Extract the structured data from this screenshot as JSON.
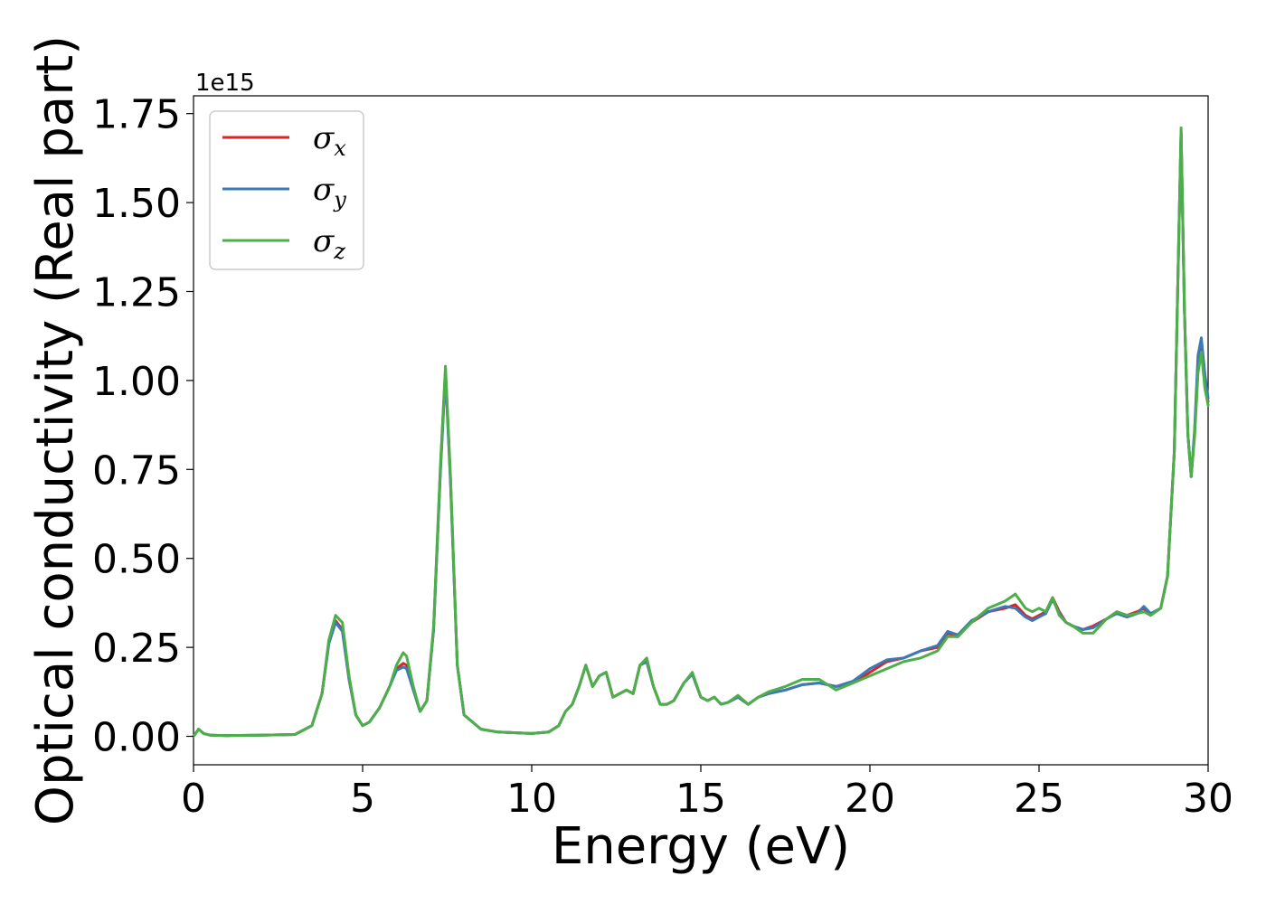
{
  "chart_data": {
    "type": "line",
    "xlabel": "Energy (eV)",
    "ylabel": "Optical conductivity (Real part)",
    "y_offset_label": "1e15",
    "xlim": [
      0,
      30
    ],
    "ylim": [
      -0.08,
      1.8
    ],
    "xticks": [
      {
        "value": 0,
        "label": "0"
      },
      {
        "value": 5,
        "label": "5"
      },
      {
        "value": 10,
        "label": "10"
      },
      {
        "value": 15,
        "label": "15"
      },
      {
        "value": 20,
        "label": "20"
      },
      {
        "value": 25,
        "label": "25"
      },
      {
        "value": 30,
        "label": "30"
      }
    ],
    "yticks": [
      {
        "value": 0.0,
        "label": "0.00"
      },
      {
        "value": 0.25,
        "label": "0.25"
      },
      {
        "value": 0.5,
        "label": "0.50"
      },
      {
        "value": 0.75,
        "label": "0.75"
      },
      {
        "value": 1.0,
        "label": "1.00"
      },
      {
        "value": 1.25,
        "label": "1.25"
      },
      {
        "value": 1.5,
        "label": "1.50"
      },
      {
        "value": 1.75,
        "label": "1.75"
      }
    ],
    "grid": false,
    "legend_position": "top-left",
    "series": [
      {
        "name": "σx",
        "symbol": "σ",
        "subscript": "x",
        "color": "#d62728",
        "x": [
          0,
          0.15,
          0.3,
          0.5,
          1,
          2,
          3,
          3.5,
          3.8,
          4.0,
          4.2,
          4.4,
          4.6,
          4.8,
          5.0,
          5.2,
          5.5,
          5.8,
          6.0,
          6.2,
          6.3,
          6.5,
          6.7,
          6.9,
          7.1,
          7.3,
          7.45,
          7.6,
          7.8,
          8.0,
          8.5,
          9.0,
          10.0,
          10.5,
          10.8,
          11.0,
          11.2,
          11.4,
          11.6,
          11.8,
          12.0,
          12.2,
          12.4,
          12.6,
          12.8,
          13.0,
          13.2,
          13.4,
          13.6,
          13.8,
          14.0,
          14.2,
          14.5,
          14.75,
          15.0,
          15.2,
          15.4,
          15.6,
          15.8,
          16.1,
          16.4,
          16.7,
          17.0,
          17.5,
          18.0,
          18.5,
          19.0,
          19.5,
          20.0,
          20.5,
          21.0,
          21.5,
          22.0,
          22.3,
          22.6,
          23.0,
          23.5,
          24.0,
          24.3,
          24.6,
          24.8,
          25.0,
          25.2,
          25.4,
          25.6,
          25.8,
          26.0,
          26.3,
          26.6,
          27.0,
          27.3,
          27.6,
          27.9,
          28.1,
          28.3,
          28.6,
          28.8,
          29.0,
          29.1,
          29.2,
          29.3,
          29.4,
          29.5,
          29.6,
          29.7,
          29.8,
          29.9,
          30.0
        ],
        "y": [
          0.0,
          0.02,
          0.008,
          0.003,
          0.002,
          0.003,
          0.005,
          0.03,
          0.12,
          0.26,
          0.325,
          0.3,
          0.16,
          0.06,
          0.03,
          0.04,
          0.08,
          0.14,
          0.19,
          0.205,
          0.2,
          0.13,
          0.07,
          0.1,
          0.3,
          0.75,
          1.03,
          0.72,
          0.2,
          0.06,
          0.02,
          0.012,
          0.008,
          0.012,
          0.03,
          0.07,
          0.09,
          0.14,
          0.2,
          0.14,
          0.17,
          0.18,
          0.11,
          0.12,
          0.13,
          0.12,
          0.2,
          0.21,
          0.14,
          0.09,
          0.09,
          0.1,
          0.15,
          0.175,
          0.11,
          0.1,
          0.11,
          0.09,
          0.095,
          0.11,
          0.09,
          0.11,
          0.12,
          0.13,
          0.145,
          0.15,
          0.14,
          0.15,
          0.18,
          0.21,
          0.22,
          0.24,
          0.25,
          0.29,
          0.28,
          0.32,
          0.35,
          0.36,
          0.37,
          0.34,
          0.33,
          0.34,
          0.35,
          0.39,
          0.35,
          0.32,
          0.31,
          0.3,
          0.31,
          0.33,
          0.35,
          0.34,
          0.35,
          0.36,
          0.34,
          0.36,
          0.45,
          0.8,
          1.25,
          1.7,
          1.2,
          0.85,
          0.73,
          0.85,
          1.05,
          1.1,
          1.0,
          0.94
        ]
      },
      {
        "name": "σy",
        "symbol": "σ",
        "subscript": "y",
        "color": "#3a7ab6",
        "x": [
          0,
          0.15,
          0.3,
          0.5,
          1,
          2,
          3,
          3.5,
          3.8,
          4.0,
          4.2,
          4.4,
          4.6,
          4.8,
          5.0,
          5.2,
          5.5,
          5.8,
          6.0,
          6.2,
          6.3,
          6.5,
          6.7,
          6.9,
          7.1,
          7.3,
          7.45,
          7.6,
          7.8,
          8.0,
          8.5,
          9.0,
          10.0,
          10.5,
          10.8,
          11.0,
          11.2,
          11.4,
          11.6,
          11.8,
          12.0,
          12.2,
          12.4,
          12.6,
          12.8,
          13.0,
          13.2,
          13.4,
          13.6,
          13.8,
          14.0,
          14.2,
          14.5,
          14.75,
          15.0,
          15.2,
          15.4,
          15.6,
          15.8,
          16.1,
          16.4,
          16.7,
          17.0,
          17.5,
          18.0,
          18.5,
          19.0,
          19.5,
          20.0,
          20.5,
          21.0,
          21.5,
          22.0,
          22.3,
          22.6,
          23.0,
          23.5,
          24.0,
          24.3,
          24.6,
          24.8,
          25.0,
          25.2,
          25.4,
          25.6,
          25.8,
          26.0,
          26.3,
          26.6,
          27.0,
          27.3,
          27.6,
          27.9,
          28.1,
          28.3,
          28.6,
          28.8,
          29.0,
          29.1,
          29.2,
          29.3,
          29.4,
          29.5,
          29.6,
          29.7,
          29.8,
          29.9,
          30.0
        ],
        "y": [
          0.0,
          0.02,
          0.008,
          0.003,
          0.002,
          0.003,
          0.005,
          0.03,
          0.12,
          0.26,
          0.32,
          0.295,
          0.16,
          0.06,
          0.03,
          0.04,
          0.08,
          0.14,
          0.185,
          0.195,
          0.19,
          0.13,
          0.07,
          0.1,
          0.3,
          0.74,
          1.02,
          0.71,
          0.2,
          0.06,
          0.02,
          0.012,
          0.008,
          0.012,
          0.03,
          0.07,
          0.09,
          0.14,
          0.2,
          0.14,
          0.17,
          0.18,
          0.11,
          0.12,
          0.13,
          0.12,
          0.2,
          0.21,
          0.14,
          0.09,
          0.09,
          0.1,
          0.15,
          0.175,
          0.11,
          0.1,
          0.11,
          0.09,
          0.095,
          0.11,
          0.09,
          0.11,
          0.12,
          0.13,
          0.145,
          0.15,
          0.14,
          0.155,
          0.19,
          0.215,
          0.22,
          0.24,
          0.255,
          0.295,
          0.285,
          0.325,
          0.35,
          0.365,
          0.36,
          0.335,
          0.325,
          0.335,
          0.345,
          0.385,
          0.345,
          0.32,
          0.31,
          0.3,
          0.305,
          0.33,
          0.345,
          0.335,
          0.345,
          0.365,
          0.345,
          0.36,
          0.45,
          0.8,
          1.25,
          1.7,
          1.2,
          0.85,
          0.73,
          0.86,
          1.07,
          1.12,
          1.02,
          0.95
        ]
      },
      {
        "name": "σz",
        "symbol": "σ",
        "subscript": "z",
        "color": "#4daf4a",
        "x": [
          0,
          0.15,
          0.3,
          0.5,
          1,
          2,
          3,
          3.5,
          3.8,
          4.0,
          4.2,
          4.4,
          4.6,
          4.8,
          5.0,
          5.2,
          5.5,
          5.8,
          6.0,
          6.2,
          6.3,
          6.5,
          6.7,
          6.9,
          7.1,
          7.3,
          7.45,
          7.6,
          7.8,
          8.0,
          8.5,
          9.0,
          10.0,
          10.5,
          10.8,
          11.0,
          11.2,
          11.4,
          11.6,
          11.8,
          12.0,
          12.2,
          12.4,
          12.6,
          12.8,
          13.0,
          13.2,
          13.4,
          13.6,
          13.8,
          14.0,
          14.2,
          14.5,
          14.75,
          15.0,
          15.2,
          15.4,
          15.6,
          15.8,
          16.1,
          16.4,
          16.7,
          17.0,
          17.5,
          18.0,
          18.5,
          19.0,
          19.5,
          20.0,
          20.5,
          21.0,
          21.5,
          22.0,
          22.3,
          22.6,
          23.0,
          23.5,
          24.0,
          24.3,
          24.6,
          24.8,
          25.0,
          25.2,
          25.4,
          25.6,
          25.8,
          26.0,
          26.3,
          26.6,
          27.0,
          27.3,
          27.6,
          27.9,
          28.1,
          28.3,
          28.6,
          28.8,
          29.0,
          29.1,
          29.2,
          29.3,
          29.4,
          29.5,
          29.6,
          29.7,
          29.8,
          29.9,
          30.0
        ],
        "y": [
          0.0,
          0.02,
          0.008,
          0.003,
          0.002,
          0.003,
          0.005,
          0.03,
          0.12,
          0.27,
          0.34,
          0.32,
          0.17,
          0.06,
          0.03,
          0.04,
          0.08,
          0.14,
          0.2,
          0.235,
          0.225,
          0.14,
          0.07,
          0.1,
          0.31,
          0.76,
          1.04,
          0.73,
          0.2,
          0.06,
          0.02,
          0.012,
          0.008,
          0.012,
          0.03,
          0.07,
          0.09,
          0.14,
          0.2,
          0.14,
          0.17,
          0.18,
          0.11,
          0.12,
          0.13,
          0.12,
          0.2,
          0.22,
          0.14,
          0.09,
          0.09,
          0.1,
          0.15,
          0.18,
          0.11,
          0.1,
          0.11,
          0.09,
          0.095,
          0.115,
          0.09,
          0.11,
          0.125,
          0.14,
          0.16,
          0.16,
          0.13,
          0.15,
          0.17,
          0.19,
          0.21,
          0.22,
          0.24,
          0.28,
          0.28,
          0.32,
          0.36,
          0.38,
          0.4,
          0.36,
          0.35,
          0.36,
          0.35,
          0.39,
          0.34,
          0.32,
          0.31,
          0.29,
          0.29,
          0.33,
          0.35,
          0.34,
          0.345,
          0.35,
          0.34,
          0.36,
          0.45,
          0.8,
          1.25,
          1.71,
          1.2,
          0.85,
          0.73,
          0.84,
          1.02,
          1.08,
          0.98,
          0.93
        ]
      }
    ]
  }
}
